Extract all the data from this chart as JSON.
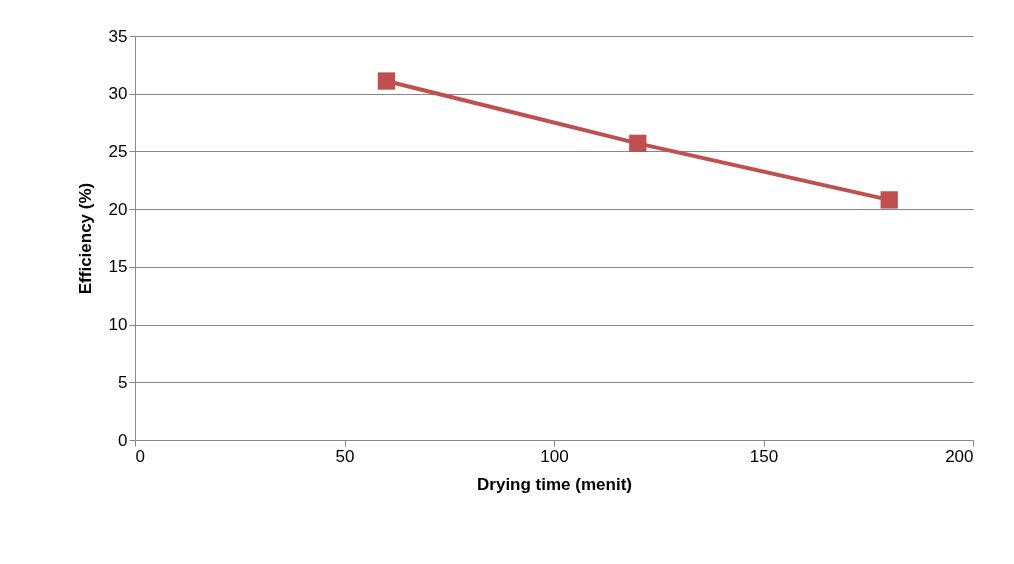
{
  "chart_data": {
    "type": "line",
    "xlabel": "Drying time (menit)",
    "ylabel": "Efficiency (%)",
    "x": [
      60,
      120,
      180
    ],
    "series": [
      {
        "color": "#c0504d",
        "values": [
          31.1,
          25.7,
          20.8
        ]
      }
    ],
    "xlim": [
      0,
      200
    ],
    "xticks": [
      0,
      50,
      100,
      150,
      200
    ],
    "ylim": [
      0,
      35
    ],
    "yticks": [
      0,
      5,
      10,
      15,
      20,
      25,
      30,
      35
    ],
    "grid": "y",
    "legend": false,
    "marker": "square",
    "line_style": "solid"
  }
}
